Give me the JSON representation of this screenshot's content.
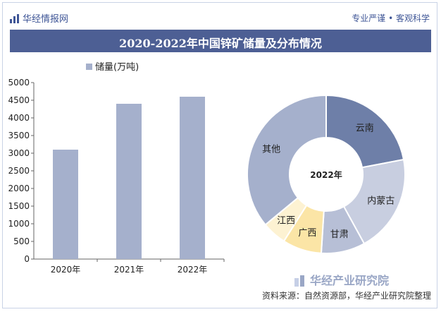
{
  "header": {
    "brand": "华经情报网",
    "slogan": "专业严谨 • 客观科学",
    "title": "2020-2022年中国锌矿储量及分布情况"
  },
  "watermark": {
    "text": "华经产业研究院"
  },
  "footer": {
    "source": "资料来源：自然资源部，华经产业研究院整理"
  },
  "colors": {
    "bar": "#a5b0cc",
    "title_bg": "#4d5f94",
    "brand": "#3e5596"
  },
  "chart_data": [
    {
      "type": "bar",
      "categories": [
        "2020年",
        "2021年",
        "2022年"
      ],
      "series": [
        {
          "name": "储量(万吨)",
          "values": [
            3100,
            4400,
            4600
          ]
        }
      ],
      "ylim": [
        0,
        5000
      ],
      "yticks": [
        0,
        500,
        1000,
        1500,
        2000,
        2500,
        3000,
        3500,
        4000,
        4500,
        5000
      ],
      "legend": "top-left"
    },
    {
      "type": "pie",
      "center_label": "2022年",
      "slices": [
        {
          "label": "云南",
          "value": 22,
          "color": "#6e7fa8"
        },
        {
          "label": "内蒙古",
          "value": 20,
          "color": "#c8cee0"
        },
        {
          "label": "甘肃",
          "value": 9,
          "color": "#b7bfd6"
        },
        {
          "label": "广西",
          "value": 8,
          "color": "#fbe5a6"
        },
        {
          "label": "江西",
          "value": 5,
          "color": "#fdf2d2"
        },
        {
          "label": "其他",
          "value": 36,
          "color": "#a5b0cc"
        }
      ]
    }
  ]
}
